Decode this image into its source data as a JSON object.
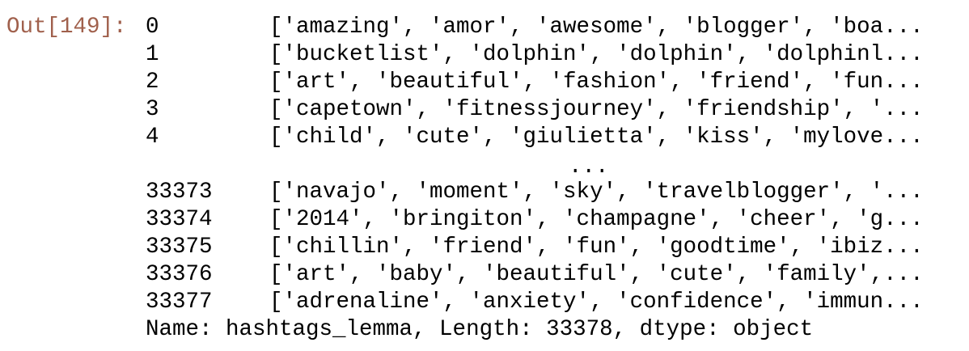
{
  "prompt": "Out[149]:",
  "series": {
    "head": [
      {
        "index": "0",
        "value": "['amazing', 'amor', 'awesome', 'blogger', 'boa..."
      },
      {
        "index": "1",
        "value": "['bucketlist', 'dolphin', 'dolphin', 'dolphinl..."
      },
      {
        "index": "2",
        "value": "['art', 'beautiful', 'fashion', 'friend', 'fun..."
      },
      {
        "index": "3",
        "value": "['capetown', 'fitnessjourney', 'friendship', '..."
      },
      {
        "index": "4",
        "value": "['child', 'cute', 'giulietta', 'kiss', 'mylove..."
      }
    ],
    "ellipsis": "...",
    "tail": [
      {
        "index": "33373",
        "value": "['navajo', 'moment', 'sky', 'travelblogger', '..."
      },
      {
        "index": "33374",
        "value": "['2014', 'bringiton', 'champagne', 'cheer', 'g..."
      },
      {
        "index": "33375",
        "value": "['chillin', 'friend', 'fun', 'goodtime', 'ibiz..."
      },
      {
        "index": "33376",
        "value": "['art', 'baby', 'beautiful', 'cute', 'family',..."
      },
      {
        "index": "33377",
        "value": "['adrenaline', 'anxiety', 'confidence', 'immun..."
      }
    ],
    "footer": "Name: hashtags_lemma, Length: 33378, dtype: object"
  }
}
